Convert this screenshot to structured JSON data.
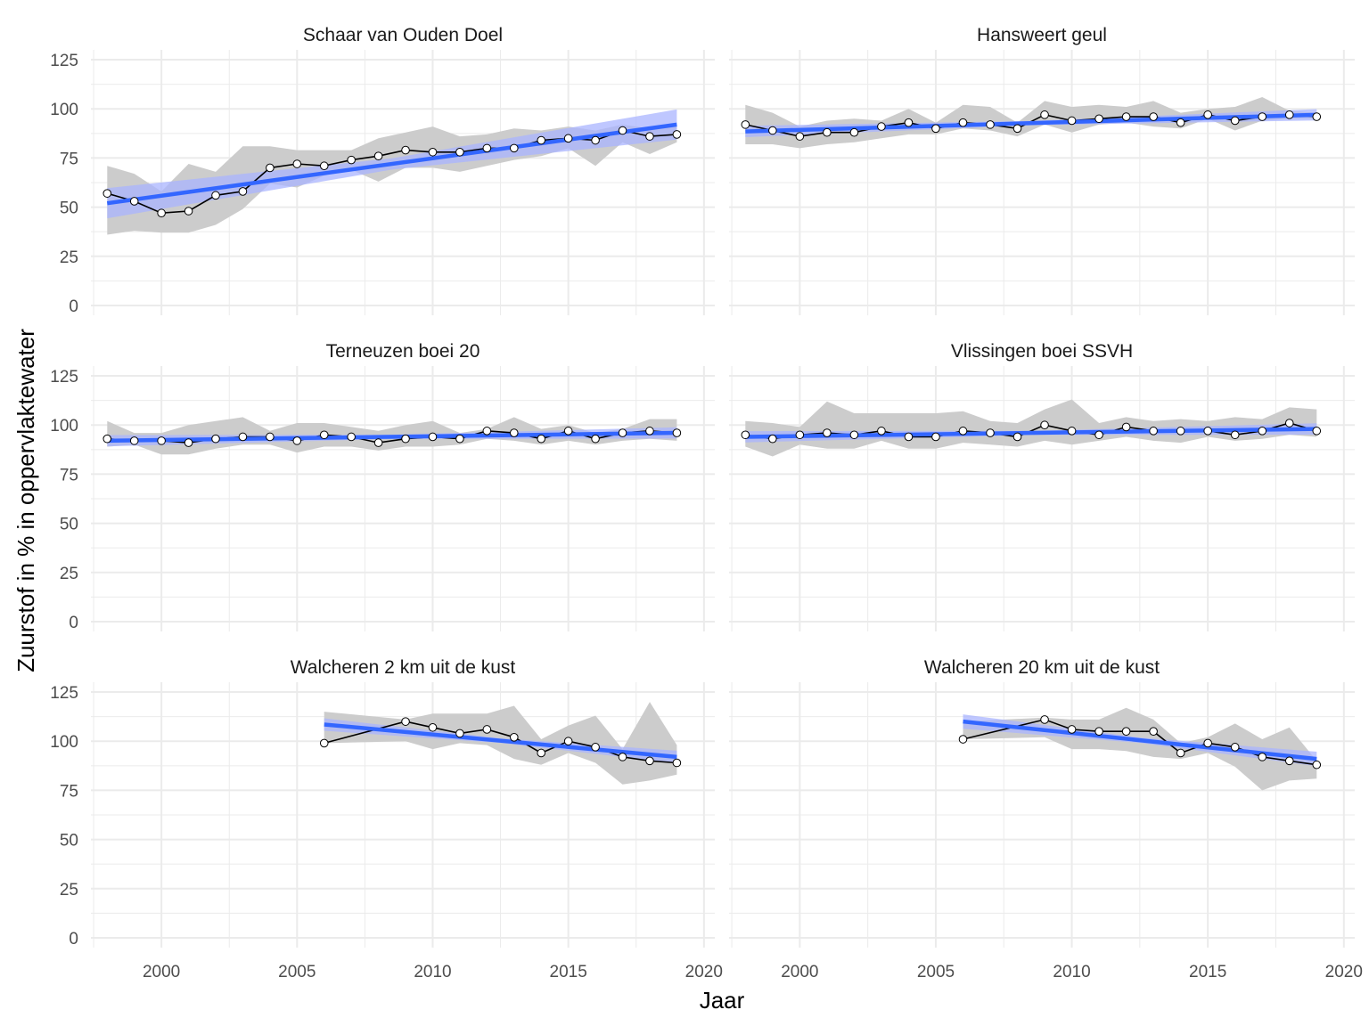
{
  "chart_data": {
    "type": "line",
    "xlabel": "Jaar",
    "ylabel": "Zuurstof in % in oppervlaktewater",
    "xlim": [
      1997.4,
      2020.4
    ],
    "ylim": [
      -5,
      130
    ],
    "x_ticks": [
      2000,
      2005,
      2010,
      2015,
      2020
    ],
    "y_ticks": [
      0,
      25,
      50,
      75,
      100,
      125
    ],
    "grid": true,
    "colors": {
      "line": "#000000",
      "trend": "#3366ff",
      "band": "#cccccc",
      "trend_ci": "#aab4ff",
      "grid": "#ebebeb"
    },
    "panels": [
      {
        "title": "Schaar van Ouden Doel",
        "x": [
          1998,
          1999,
          2000,
          2001,
          2002,
          2003,
          2004,
          2005,
          2006,
          2007,
          2008,
          2009,
          2010,
          2011,
          2012,
          2013,
          2014,
          2015,
          2016,
          2017,
          2018,
          2019
        ],
        "mean": [
          57,
          53,
          47,
          48,
          56,
          58,
          70,
          72,
          71,
          74,
          76,
          79,
          78,
          78,
          80,
          80,
          84,
          85,
          84,
          89,
          86,
          87
        ],
        "min": [
          36,
          38,
          37,
          37,
          41,
          49,
          62,
          60,
          66,
          69,
          63,
          70,
          70,
          68,
          71,
          74,
          76,
          80,
          71,
          83,
          77,
          83
        ],
        "max": [
          71,
          67,
          58,
          72,
          68,
          81,
          81,
          79,
          79,
          79,
          85,
          88,
          91,
          86,
          87,
          90,
          89,
          91,
          89,
          92,
          90,
          91
        ],
        "trend": [
          52,
          92
        ]
      },
      {
        "title": "Hansweert geul",
        "x": [
          1998,
          1999,
          2000,
          2001,
          2002,
          2003,
          2004,
          2005,
          2006,
          2007,
          2008,
          2009,
          2010,
          2011,
          2012,
          2013,
          2014,
          2015,
          2016,
          2017,
          2018,
          2019
        ],
        "mean": [
          92,
          89,
          86,
          88,
          88,
          91,
          93,
          90,
          93,
          92,
          90,
          97,
          94,
          95,
          96,
          96,
          93,
          97,
          94,
          96,
          97,
          96
        ],
        "min": [
          82,
          82,
          80,
          82,
          83,
          85,
          87,
          87,
          90,
          89,
          86,
          92,
          88,
          92,
          93,
          91,
          90,
          95,
          89,
          94,
          95,
          95
        ],
        "max": [
          102,
          98,
          91,
          94,
          95,
          94,
          100,
          93,
          102,
          101,
          93,
          104,
          101,
          102,
          101,
          104,
          98,
          100,
          101,
          106,
          99,
          98
        ],
        "trend": [
          88.5,
          97
        ]
      },
      {
        "title": "Terneuzen boei 20",
        "x": [
          1998,
          1999,
          2000,
          2001,
          2002,
          2003,
          2004,
          2005,
          2006,
          2007,
          2008,
          2009,
          2010,
          2011,
          2012,
          2013,
          2014,
          2015,
          2016,
          2017,
          2018,
          2019
        ],
        "mean": [
          93,
          92,
          92,
          91,
          93,
          94,
          94,
          92,
          95,
          94,
          91,
          93,
          94,
          93,
          97,
          96,
          93,
          97,
          93,
          96,
          97,
          96
        ],
        "min": [
          89,
          90,
          85,
          85,
          88,
          90,
          90,
          86,
          89,
          89,
          87,
          89,
          89,
          90,
          93,
          92,
          90,
          92,
          90,
          92,
          93,
          92
        ],
        "max": [
          102,
          96,
          96,
          100,
          102,
          104,
          97,
          101,
          101,
          99,
          97,
          100,
          102,
          96,
          98,
          104,
          98,
          100,
          96,
          98,
          103,
          103
        ],
        "trend": [
          92,
          96
        ]
      },
      {
        "title": "Vlissingen boei SSVH",
        "x": [
          1998,
          1999,
          2000,
          2001,
          2002,
          2003,
          2004,
          2005,
          2006,
          2007,
          2008,
          2009,
          2010,
          2011,
          2012,
          2013,
          2014,
          2015,
          2016,
          2017,
          2018,
          2019
        ],
        "mean": [
          95,
          93,
          95,
          96,
          95,
          97,
          94,
          94,
          97,
          96,
          94,
          100,
          97,
          95,
          99,
          97,
          97,
          97,
          95,
          97,
          101,
          97
        ],
        "min": [
          89,
          84,
          90,
          88,
          88,
          92,
          88,
          88,
          91,
          90,
          89,
          92,
          90,
          92,
          94,
          92,
          91,
          94,
          92,
          93,
          95,
          94
        ],
        "max": [
          102,
          101,
          99,
          112,
          106,
          106,
          106,
          106,
          107,
          102,
          101,
          108,
          113,
          101,
          104,
          102,
          103,
          102,
          104,
          103,
          109,
          108
        ],
        "trend": [
          94,
          98
        ]
      },
      {
        "title": "Walcheren 2 km uit de kust",
        "x": [
          2006,
          2009,
          2010,
          2011,
          2012,
          2013,
          2014,
          2015,
          2016,
          2017,
          2018,
          2019
        ],
        "mean": [
          99,
          110,
          107,
          104,
          106,
          102,
          94,
          100,
          97,
          92,
          90,
          89
        ],
        "min": [
          99,
          100,
          96,
          99,
          98,
          91,
          88,
          94,
          89,
          78,
          80,
          83
        ],
        "max": [
          115,
          111,
          114,
          114,
          114,
          118,
          101,
          108,
          113,
          96,
          120,
          98
        ],
        "trend": [
          108.5,
          92
        ]
      },
      {
        "title": "Walcheren 20 km uit de kust",
        "x": [
          2006,
          2009,
          2010,
          2011,
          2012,
          2013,
          2014,
          2015,
          2016,
          2017,
          2018,
          2019
        ],
        "mean": [
          101,
          111,
          106,
          105,
          105,
          105,
          94,
          99,
          97,
          92,
          90,
          88
        ],
        "min": [
          101,
          102,
          96,
          96,
          95,
          92,
          91,
          94,
          87,
          75,
          80,
          81
        ],
        "max": [
          110,
          112,
          111,
          111,
          117,
          111,
          99,
          102,
          109,
          101,
          107,
          90
        ],
        "trend": [
          110,
          91
        ]
      }
    ]
  }
}
